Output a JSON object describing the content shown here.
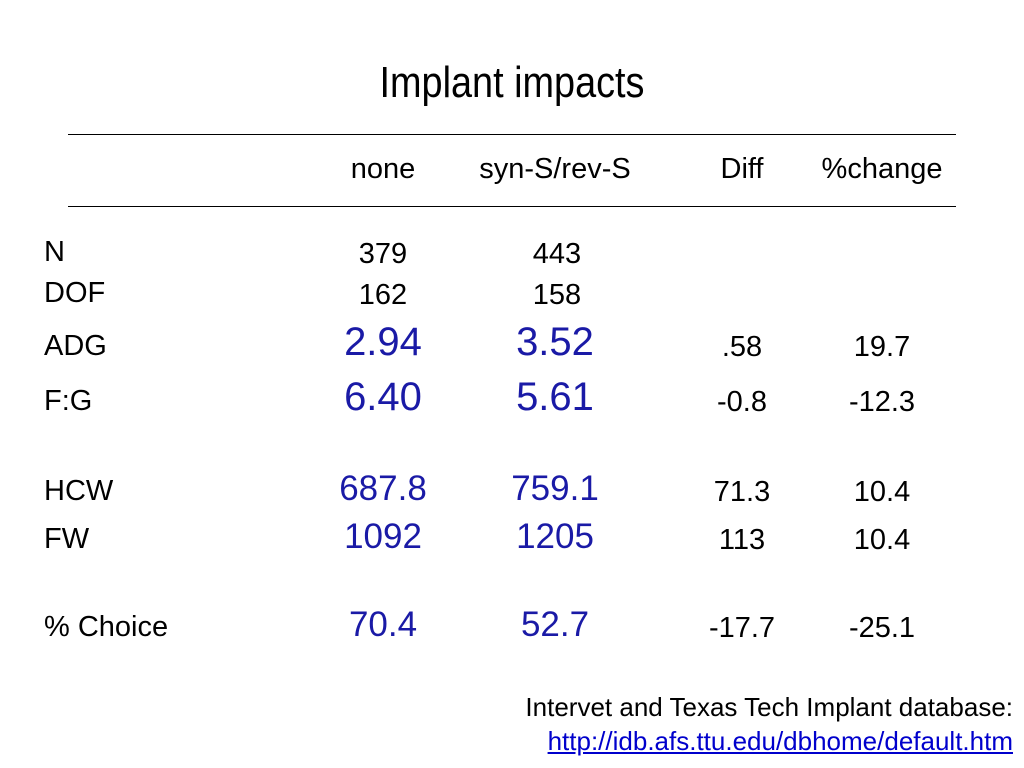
{
  "title": "Implant impacts",
  "columns": [
    "none",
    "syn-S/rev-S",
    "Diff",
    "%change"
  ],
  "rows": [
    {
      "label": "N",
      "none": "379",
      "syn": "443",
      "diff": "",
      "pct": ""
    },
    {
      "label": "DOF",
      "none": "162",
      "syn": "158",
      "diff": "",
      "pct": ""
    },
    {
      "label": "ADG",
      "none": "2.94",
      "syn": "3.52",
      "diff": ".58",
      "pct": "19.7"
    },
    {
      "label": "F:G",
      "none": "6.40",
      "syn": "5.61",
      "diff": "-0.8",
      "pct": "-12.3"
    },
    {
      "label": "HCW",
      "none": "687.8",
      "syn": "759.1",
      "diff": "71.3",
      "pct": "10.4"
    },
    {
      "label": "FW",
      "none": "1092",
      "syn": "1205",
      "diff": "113",
      "pct": "10.4"
    },
    {
      "label": "% Choice",
      "none": "70.4",
      "syn": "52.7",
      "diff": "-17.7",
      "pct": "-25.1"
    }
  ],
  "footer": {
    "source": "Intervet and Texas Tech Implant database:",
    "link": "http://idb.afs.ttu.edu/dbhome/default.htm"
  },
  "colors": {
    "highlight_values": "#1a1aa6",
    "link": "#0000cc",
    "text": "#000000"
  }
}
